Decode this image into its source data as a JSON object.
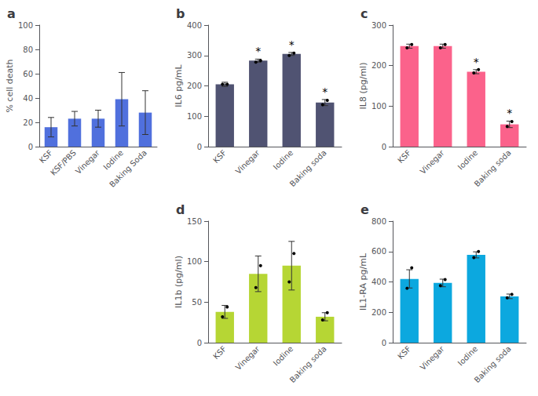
{
  "chart_data": [
    {
      "type": "bar",
      "title": "a",
      "categories": [
        "KSF",
        "KSF/PBS",
        "Vinegar",
        "Iodine",
        "Baking Soda"
      ],
      "values": [
        16,
        23,
        23,
        39,
        28
      ],
      "errors": [
        8,
        6,
        7,
        22,
        18
      ],
      "ylabel": "% cell death",
      "ylim": [
        0,
        100
      ],
      "yticks": [
        0,
        20,
        40,
        60,
        80,
        100
      ],
      "grid": false
    },
    {
      "type": "bar",
      "title": "b",
      "categories": [
        "KSF",
        "Vinegar",
        "Iodine",
        "Baking soda"
      ],
      "values": [
        205,
        283,
        305,
        145
      ],
      "errors": [
        7,
        5,
        5,
        10
      ],
      "points": [
        [
          205,
          205
        ],
        [
          278,
          283
        ],
        [
          300,
          308
        ],
        [
          138,
          152
        ]
      ],
      "annotations": [
        {
          "category": "Vinegar",
          "text": "*"
        },
        {
          "category": "Iodine",
          "text": "*"
        },
        {
          "category": "Baking soda",
          "text": "*"
        }
      ],
      "ylabel": "IL6 pg/mL",
      "ylim": [
        0,
        400
      ],
      "yticks": [
        0,
        100,
        200,
        300,
        400
      ],
      "grid": false
    },
    {
      "type": "bar",
      "title": "c",
      "categories": [
        "KSF",
        "Vinegar",
        "Iodine",
        "Baking soda"
      ],
      "values": [
        248,
        248,
        185,
        55
      ],
      "errors": [
        5,
        5,
        5,
        8
      ],
      "points": [
        [
          244,
          252
        ],
        [
          244,
          252
        ],
        [
          182,
          190
        ],
        [
          50,
          62
        ]
      ],
      "annotations": [
        {
          "category": "Iodine",
          "text": "*"
        },
        {
          "category": "Baking soda",
          "text": "*"
        }
      ],
      "ylabel": "IL8 (pg/ml)",
      "ylim": [
        0,
        300
      ],
      "yticks": [
        0,
        100,
        200,
        300
      ],
      "grid": false
    },
    {
      "type": "bar",
      "title": "d",
      "categories": [
        "KSF",
        "Vinegar",
        "Iodine",
        "Baking soda"
      ],
      "values": [
        38,
        85,
        95,
        32
      ],
      "errors": [
        8,
        22,
        30,
        5
      ],
      "points": [
        [
          32,
          44
        ],
        [
          68,
          95
        ],
        [
          75,
          110
        ],
        [
          28,
          37
        ]
      ],
      "ylabel": "IL1b (pg/ml)",
      "ylim": [
        0,
        150
      ],
      "yticks": [
        0,
        50,
        100,
        150
      ],
      "grid": false
    },
    {
      "type": "bar",
      "title": "e",
      "categories": [
        "KSF",
        "Vinegar",
        "Iodine",
        "Baking soda"
      ],
      "values": [
        420,
        393,
        578,
        305
      ],
      "errors": [
        60,
        25,
        20,
        15
      ],
      "points": [
        [
          358,
          493
        ],
        [
          375,
          415
        ],
        [
          560,
          600
        ],
        [
          295,
          318
        ]
      ],
      "ylabel": "IL1-RA pg/mL",
      "ylim": [
        0,
        800
      ],
      "yticks": [
        0,
        200,
        400,
        600,
        800
      ],
      "grid": false
    }
  ]
}
